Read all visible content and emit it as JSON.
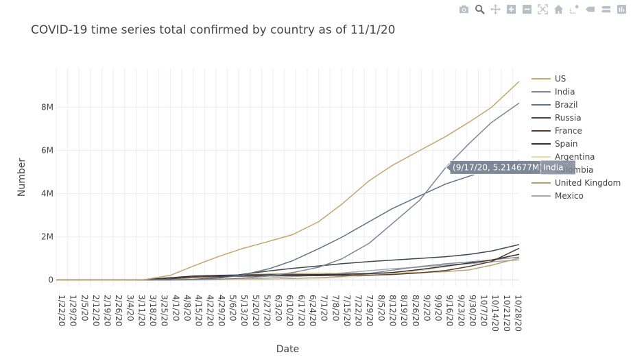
{
  "toolbar": {
    "buttons": [
      {
        "name": "camera-icon",
        "title": "Download plot as a png"
      },
      {
        "name": "zoom-icon",
        "title": "Zoom",
        "active": true
      },
      {
        "name": "pan-icon",
        "title": "Pan"
      },
      {
        "name": "zoom-in-icon",
        "title": "Zoom in"
      },
      {
        "name": "zoom-out-icon",
        "title": "Zoom out"
      },
      {
        "name": "autoscale-icon",
        "title": "Autoscale"
      },
      {
        "name": "home-icon",
        "title": "Reset axes"
      },
      {
        "name": "spike-lines-icon",
        "title": "Toggle Spike Lines"
      },
      {
        "name": "hover-closest-icon",
        "title": "Show closest data on hover"
      },
      {
        "name": "hover-compare-icon",
        "title": "Compare data on hover"
      },
      {
        "name": "plotly-logo-icon",
        "title": "Produced with Plotly"
      }
    ]
  },
  "chart_data": {
    "type": "line",
    "title": "COVID-19 time series total confirmed by country as of 11/1/20",
    "xlabel": "Date",
    "ylabel": "Number",
    "x_ticks": [
      "1/22/20",
      "1/29/20",
      "2/5/20",
      "2/12/20",
      "2/19/20",
      "2/26/20",
      "3/4/20",
      "3/11/20",
      "3/18/20",
      "3/25/20",
      "4/1/20",
      "4/8/20",
      "4/15/20",
      "4/22/20",
      "4/29/20",
      "5/6/20",
      "5/13/20",
      "5/20/20",
      "5/27/20",
      "6/3/20",
      "6/10/20",
      "6/17/20",
      "6/24/20",
      "7/1/20",
      "7/8/20",
      "7/15/20",
      "7/22/20",
      "7/29/20",
      "8/5/20",
      "8/12/20",
      "8/19/20",
      "8/26/20",
      "9/2/20",
      "9/9/20",
      "9/16/20",
      "9/23/20",
      "9/30/20",
      "10/7/20",
      "10/14/20",
      "10/21/20",
      "10/28/20"
    ],
    "x_range": [
      "1/22/20",
      "11/1/20"
    ],
    "y_ticks": [
      "0",
      "2M",
      "4M",
      "6M",
      "8M"
    ],
    "y_tick_values": [
      0,
      2000000,
      4000000,
      6000000,
      8000000
    ],
    "ylim": [
      -300000,
      9800000
    ],
    "grid": true,
    "legend_position": "right",
    "x": [
      "1/22/20",
      "3/1/20",
      "3/15/20",
      "4/1/20",
      "4/15/20",
      "5/1/20",
      "5/15/20",
      "6/1/20",
      "6/15/20",
      "7/1/20",
      "7/15/20",
      "8/1/20",
      "8/15/20",
      "9/1/20",
      "9/17/20",
      "10/1/20",
      "10/15/20",
      "11/1/20"
    ],
    "series": [
      {
        "name": "US",
        "color": "#c5a66b",
        "values": [
          0,
          30,
          3500,
          215000,
          640000,
          1100000,
          1450000,
          1800000,
          2100000,
          2700000,
          3500000,
          4600000,
          5300000,
          6000000,
          6650000,
          7300000,
          8000000,
          9200000
        ]
      },
      {
        "name": "India",
        "color": "#7d8795",
        "values": [
          0,
          3,
          110,
          1900,
          12000,
          35000,
          82000,
          190000,
          340000,
          590000,
          970000,
          1700000,
          2600000,
          3700000,
          5214677,
          6300000,
          7300000,
          8200000
        ]
      },
      {
        "name": "Brazil",
        "color": "#5f7185",
        "values": [
          0,
          2,
          120,
          6800,
          28000,
          90000,
          220000,
          530000,
          890000,
          1450000,
          1970000,
          2700000,
          3300000,
          3900000,
          4450000,
          4800000,
          5150000,
          5550000
        ]
      },
      {
        "name": "Russia",
        "color": "#3f4551",
        "values": [
          0,
          0,
          60,
          2800,
          25000,
          115000,
          260000,
          420000,
          540000,
          650000,
          750000,
          850000,
          920000,
          1000000,
          1080000,
          1180000,
          1340000,
          1640000
        ]
      },
      {
        "name": "France",
        "color": "#5b3a2e",
        "values": [
          0,
          130,
          5400,
          57000,
          134000,
          167000,
          178000,
          189000,
          195000,
          203000,
          211000,
          225000,
          252000,
          330000,
          440000,
          620000,
          850000,
          1470000
        ]
      },
      {
        "name": "Spain",
        "color": "#2f3440",
        "values": [
          0,
          80,
          7800,
          104000,
          180000,
          213000,
          230000,
          240000,
          244000,
          250000,
          258000,
          290000,
          345000,
          480000,
          640000,
          780000,
          920000,
          1190000
        ]
      },
      {
        "name": "Argentina",
        "color": "#ecd9a6",
        "values": [
          0,
          0,
          50,
          1050,
          2400,
          4500,
          7800,
          17000,
          33000,
          68000,
          120000,
          200000,
          290000,
          430000,
          610000,
          780000,
          950000,
          1180000
        ]
      },
      {
        "name": "Colombia",
        "color": "#8a8f98",
        "values": [
          0,
          0,
          30,
          1000,
          3100,
          6500,
          14000,
          31000,
          55000,
          100000,
          160000,
          300000,
          450000,
          620000,
          750000,
          830000,
          930000,
          1060000
        ]
      },
      {
        "name": "United Kingdom",
        "color": "#b7a46d",
        "values": [
          0,
          40,
          1400,
          29000,
          98000,
          172000,
          236000,
          278000,
          296000,
          312000,
          292000,
          303000,
          316000,
          338000,
          385000,
          463000,
          680000,
          1015000
        ]
      },
      {
        "name": "Mexico",
        "color": "#a4a8b0",
        "values": [
          0,
          0,
          40,
          1300,
          5800,
          20000,
          45000,
          90000,
          150000,
          230000,
          320000,
          430000,
          520000,
          600000,
          690000,
          750000,
          840000,
          930000
        ]
      }
    ],
    "hover": {
      "series": "India",
      "x": "9/17/20",
      "value": 5214677,
      "text": "(9/17/20, 5.214677M)",
      "label": "India"
    }
  }
}
